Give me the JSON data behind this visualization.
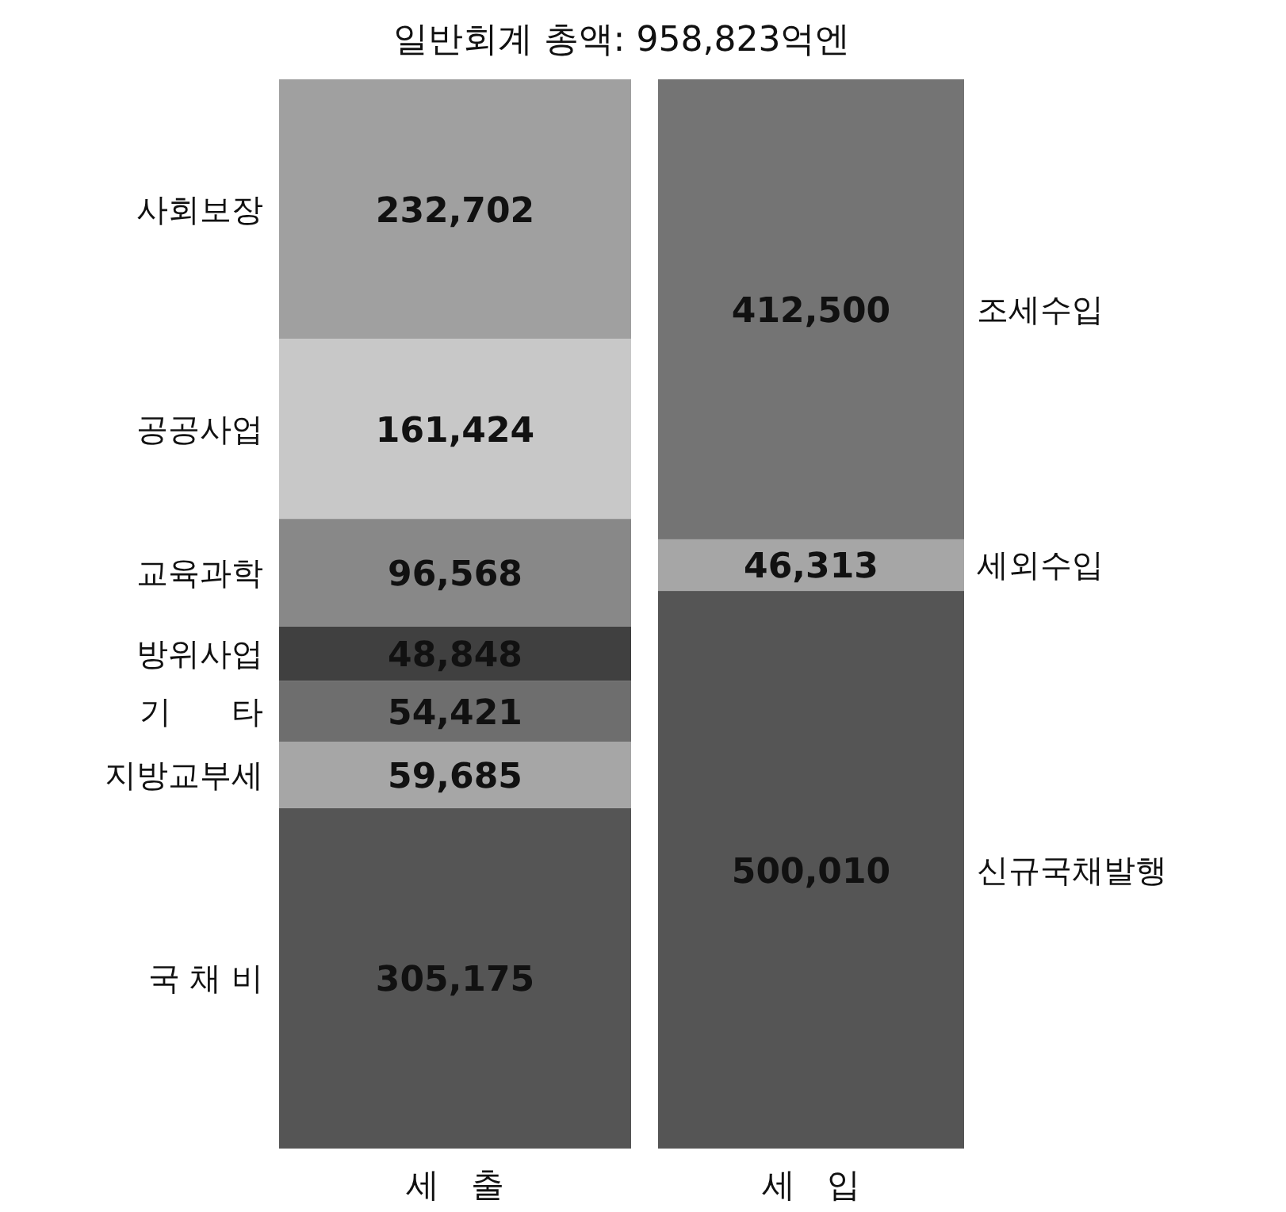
{
  "chart_data": {
    "type": "bar",
    "stacked": true,
    "title": "일반회계 총액: 958,823억엔",
    "categories": [
      "세   출",
      "세   입"
    ],
    "legend": false,
    "series": [
      {
        "name": "국 채 비",
        "color": "#555555",
        "values": [
          305175,
          null
        ],
        "value_labels": [
          "305,175",
          null
        ]
      },
      {
        "name": "지방교부세",
        "color": "#a6a6a6",
        "values": [
          59685,
          null
        ],
        "value_labels": [
          "59,685",
          null
        ]
      },
      {
        "name": "기      타",
        "color": "#6e6e6e",
        "values": [
          54421,
          null
        ],
        "value_labels": [
          "54,421",
          null
        ]
      },
      {
        "name": "방위사업",
        "color": "#404040",
        "values": [
          48848,
          null
        ],
        "value_labels": [
          "48,848",
          null
        ]
      },
      {
        "name": "교육과학",
        "color": "#888888",
        "values": [
          96568,
          null
        ],
        "value_labels": [
          "96,568",
          null
        ]
      },
      {
        "name": "공공사업",
        "color": "#c8c8c8",
        "values": [
          161424,
          null
        ],
        "value_labels": [
          "161,424",
          null
        ]
      },
      {
        "name": "사회보장",
        "color": "#a0a0a0",
        "values": [
          232702,
          null
        ],
        "value_labels": [
          "232,702",
          null
        ]
      },
      {
        "name": "신규국채발행",
        "color": "#555555",
        "values": [
          null,
          500010
        ],
        "value_labels": [
          null,
          "500,010"
        ]
      },
      {
        "name": "세외수입",
        "color": "#a6a6a6",
        "values": [
          null,
          46313
        ],
        "value_labels": [
          null,
          "46,313"
        ]
      },
      {
        "name": "조세수입",
        "color": "#747474",
        "values": [
          null,
          412500
        ],
        "value_labels": [
          null,
          "412,500"
        ]
      }
    ]
  }
}
